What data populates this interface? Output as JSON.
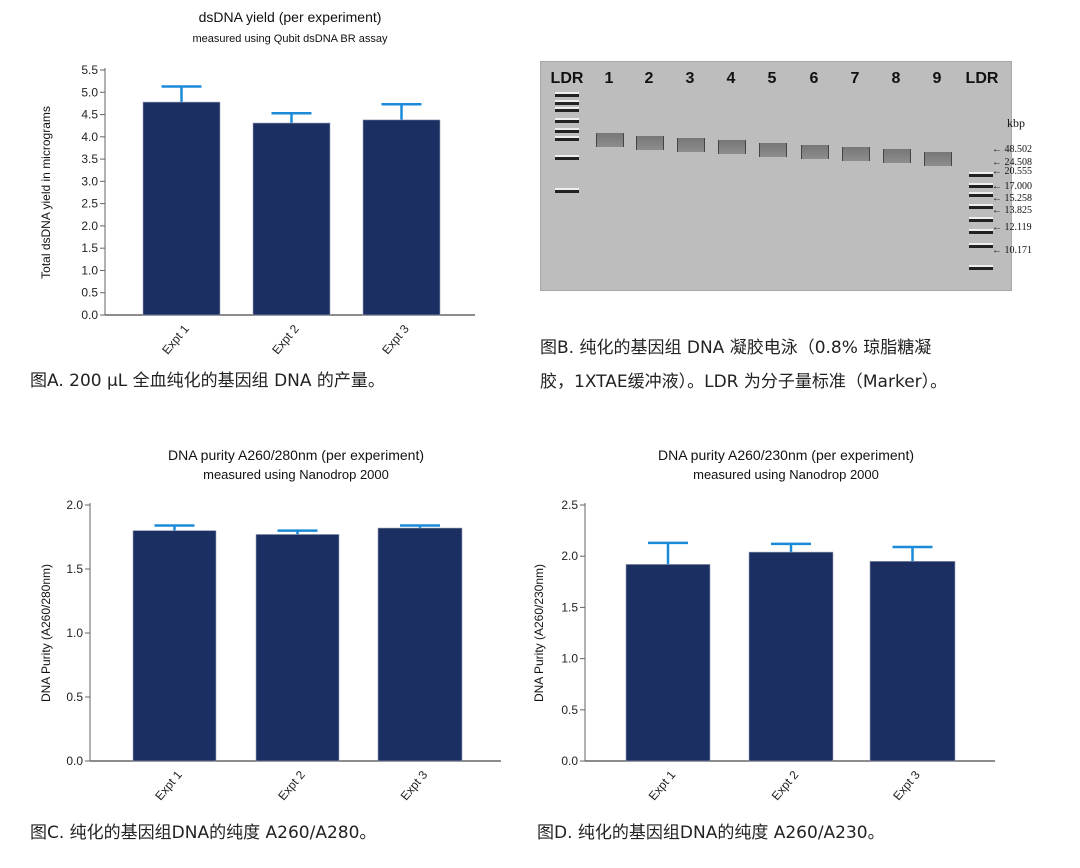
{
  "chart_data": [
    {
      "id": "A",
      "type": "bar",
      "title": "dsDNA yield (per experiment)",
      "subtitle": "measured using Qubit dsDNA BR assay",
      "ylabel": "Total dsDNA yield in micrograms",
      "categories": [
        "Expt 1",
        "Expt 2",
        "Expt 3"
      ],
      "values": [
        4.78,
        4.31,
        4.38
      ],
      "error_upper": [
        5.13,
        4.53,
        4.73
      ],
      "ylim": [
        0,
        5.5
      ],
      "yticks": [
        "0.0",
        "0.5",
        "1.0",
        "1.5",
        "2.0",
        "2.5",
        "3.0",
        "3.5",
        "4.0",
        "4.5",
        "5.0",
        "5.5"
      ],
      "grid": false,
      "bar_color": "#1c2f62",
      "error_color": "#1b8ad8",
      "caption": "图A. 200 µL 全血纯化的基因组 DNA 的产量。"
    },
    {
      "id": "C",
      "type": "bar",
      "title": "DNA purity A260/280nm (per experiment)",
      "subtitle": "measured using Nanodrop 2000",
      "ylabel": "DNA Purity (A260/280nm)",
      "categories": [
        "Expt 1",
        "Expt 2",
        "Expt 3"
      ],
      "values": [
        1.8,
        1.77,
        1.82
      ],
      "error_upper": [
        1.84,
        1.8,
        1.84
      ],
      "ylim": [
        0,
        2.0
      ],
      "yticks": [
        "0.0",
        "0.5",
        "1.0",
        "1.5",
        "2.0"
      ],
      "grid": false,
      "bar_color": "#1c2f62",
      "error_color": "#1b8ad8",
      "caption": "图C. 纯化的基因组DNA的纯度 A260/A280。"
    },
    {
      "id": "D",
      "type": "bar",
      "title": "DNA purity A260/230nm (per experiment)",
      "subtitle": "measured using Nanodrop 2000",
      "ylabel": "DNA Purity (A260/230nm)",
      "categories": [
        "Expt 1",
        "Expt 2",
        "Expt 3"
      ],
      "values": [
        1.92,
        2.04,
        1.95
      ],
      "error_upper": [
        2.13,
        2.12,
        2.09
      ],
      "ylim": [
        0,
        2.5
      ],
      "yticks": [
        "0.0",
        "0.5",
        "1.0",
        "1.5",
        "2.0",
        "2.5"
      ],
      "grid": false,
      "bar_color": "#1c2f62",
      "error_color": "#1b8ad8",
      "caption": "图D. 纯化的基因组DNA的纯度 A260/A230。"
    }
  ],
  "gel": {
    "lane_labels": [
      "LDR",
      "1",
      "2",
      "3",
      "4",
      "5",
      "6",
      "7",
      "8",
      "9",
      "LDR"
    ],
    "unit": "kbp",
    "marker_sizes": [
      "48.502",
      "24.508",
      "20.555",
      "17.000",
      "15.258",
      "13.825",
      "12.119",
      "10.171"
    ],
    "caption_line1": "图B. 纯化的基因组 DNA 凝胶电泳（0.8% 琼脂糖凝",
    "caption_line2": "胶，1XTAE缓冲液）。LDR 为分子量标准（Marker）。"
  }
}
